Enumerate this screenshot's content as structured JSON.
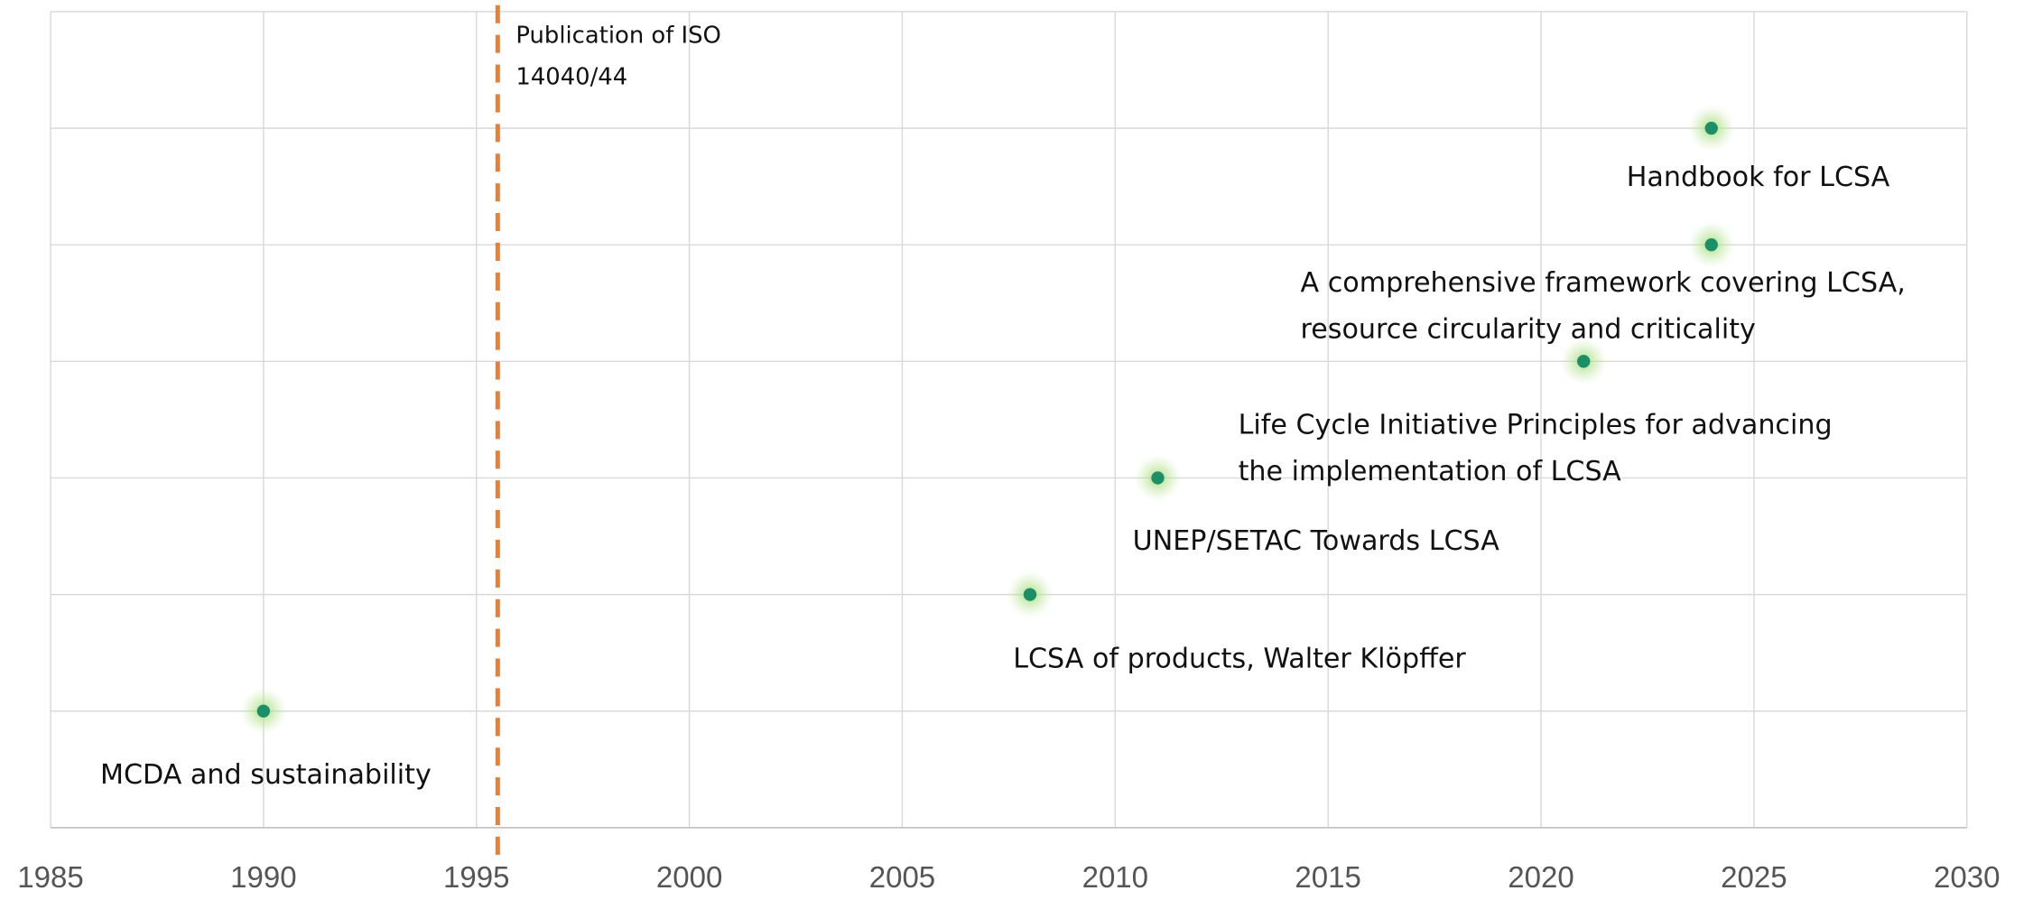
{
  "chart_data": {
    "type": "scatter",
    "x": [
      1990,
      2008,
      2011,
      2021,
      2024,
      2024
    ],
    "values": [
      1,
      2,
      3,
      4,
      5,
      6
    ],
    "color": "#1a9068",
    "annotations": [
      [
        "MCDA and sustainability"
      ],
      [
        "LCSA of products, Walter Klöpffer"
      ],
      [
        "UNEP/SETAC Towards LCSA"
      ],
      [
        "Life Cycle Initiative Principles for advancing",
        "the implementation of LCSA"
      ],
      [
        "A comprehensive framework covering LCSA,",
        "resource circularity and criticality"
      ],
      [
        "Handbook for LCSA"
      ]
    ],
    "reference_line": {
      "x": 1995.5,
      "color": "#ed7d31",
      "label": [
        "Publication of ISO",
        "14040/44"
      ]
    },
    "xlim": [
      1985,
      2030
    ],
    "xticks": [
      1985,
      1990,
      1995,
      2000,
      2005,
      2010,
      2015,
      2020,
      2025,
      2030
    ],
    "ylim": [
      0,
      7
    ],
    "yticks": [
      0,
      1,
      2,
      3,
      4,
      5,
      6,
      7
    ],
    "show_ytick_labels": false,
    "grid": true
  }
}
